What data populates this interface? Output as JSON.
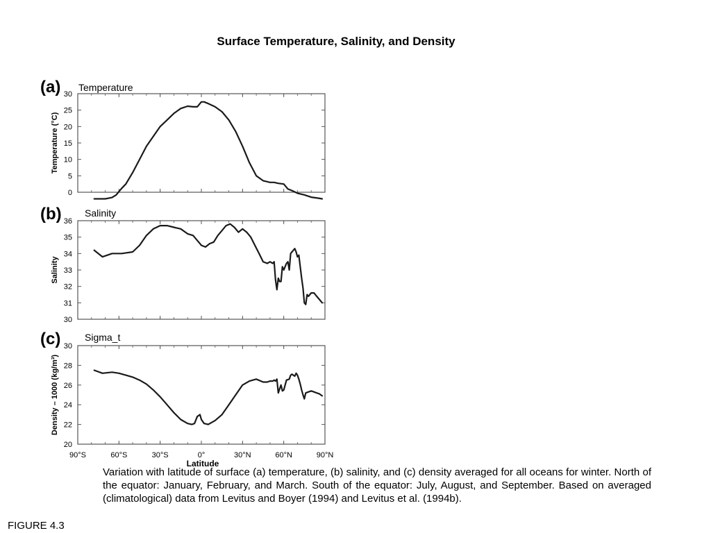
{
  "page": {
    "title": "Surface Temperature, Salinity, and Density",
    "caption": "Variation with latitude of surface (a) temperature, (b) salinity, and (c) density averaged for all oceans for winter. North of the equator: January, February, and March. South of the equator: July, August, and September. Based on averaged (climatological) data from Levitus and Boyer (1994) and Levitus et al. (1994b).",
    "figure_label": "FIGURE 4.3"
  },
  "colors": {
    "line": "#1a1a1a",
    "frame": "#555555",
    "text": "#000000"
  },
  "chart_data": [
    {
      "type": "line",
      "panel_letter": "(a)",
      "title": "Temperature",
      "xlabel": "",
      "ylabel": "Temperature (°C)",
      "xlim": [
        -90,
        90
      ],
      "ylim": [
        0,
        30
      ],
      "x_ticks": [
        -90,
        -60,
        -30,
        0,
        30,
        60,
        90
      ],
      "y_ticks": [
        0,
        5,
        10,
        15,
        20,
        25,
        30
      ],
      "y_tick_labels": [
        "0",
        "5",
        "10",
        "15",
        "20",
        "25",
        "30"
      ],
      "grid": false,
      "x": [
        -78,
        -70,
        -65,
        -62,
        -60,
        -58,
        -55,
        -50,
        -45,
        -40,
        -35,
        -30,
        -25,
        -20,
        -15,
        -10,
        -6,
        -3,
        -1,
        0,
        2,
        5,
        10,
        15,
        20,
        25,
        30,
        35,
        40,
        45,
        50,
        53,
        56,
        60,
        63,
        66,
        70,
        75,
        80,
        85,
        88
      ],
      "values": [
        -2,
        -2,
        -1.6,
        -0.8,
        0.2,
        1.2,
        2.5,
        6,
        10,
        14,
        17,
        20,
        22,
        24,
        25.5,
        26.2,
        26,
        26,
        27,
        27.5,
        27.5,
        27,
        26,
        24.5,
        22,
        18.5,
        14,
        9,
        5,
        3.5,
        3,
        3,
        2.7,
        2.5,
        1,
        0.5,
        -0.3,
        -0.8,
        -1.5,
        -1.8,
        -2
      ]
    },
    {
      "type": "line",
      "panel_letter": "(b)",
      "title": "Salinity",
      "xlabel": "",
      "ylabel": "Salinity",
      "xlim": [
        -90,
        90
      ],
      "ylim": [
        30,
        36
      ],
      "x_ticks": [
        -90,
        -60,
        -30,
        0,
        30,
        60,
        90
      ],
      "y_ticks": [
        30,
        31,
        32,
        33,
        34,
        35,
        36
      ],
      "y_tick_labels": [
        "30",
        "31",
        "32",
        "33",
        "34",
        "35",
        "36"
      ],
      "grid": false,
      "x": [
        -78,
        -72,
        -65,
        -58,
        -50,
        -45,
        -40,
        -35,
        -30,
        -25,
        -20,
        -15,
        -10,
        -6,
        -3,
        -1,
        0,
        3,
        6,
        9,
        12,
        15,
        18,
        21,
        24,
        27,
        30,
        33,
        36,
        39,
        42,
        45,
        48,
        50,
        52,
        53,
        54,
        55,
        56,
        57,
        58,
        59,
        60,
        61,
        62,
        63,
        64,
        65,
        66,
        67,
        68,
        69,
        70,
        71,
        72,
        73,
        74,
        75,
        76,
        77,
        78,
        80,
        82,
        84,
        86,
        88
      ],
      "values": [
        34.2,
        33.8,
        34,
        34,
        34.1,
        34.5,
        35.1,
        35.5,
        35.7,
        35.7,
        35.6,
        35.5,
        35.2,
        35.1,
        34.8,
        34.6,
        34.5,
        34.4,
        34.6,
        34.7,
        35.1,
        35.4,
        35.7,
        35.8,
        35.6,
        35.3,
        35.5,
        35.3,
        35,
        34.5,
        34,
        33.5,
        33.4,
        33.5,
        33.4,
        33.5,
        32.4,
        31.8,
        32.5,
        32.3,
        32.3,
        33.2,
        33,
        33.2,
        33.4,
        33.5,
        33,
        34,
        34.1,
        34.2,
        34.3,
        34.1,
        33.8,
        33.9,
        33.2,
        32.5,
        31.9,
        31,
        30.9,
        31.5,
        31.4,
        31.6,
        31.6,
        31.4,
        31.2,
        31
      ]
    },
    {
      "type": "line",
      "panel_letter": "(c)",
      "title": "Sigma_t",
      "xlabel": "Latitude",
      "ylabel": "Density – 1000 (kg/m³)",
      "xlim": [
        -90,
        90
      ],
      "ylim": [
        20,
        30
      ],
      "x_ticks": [
        -90,
        -60,
        -30,
        0,
        30,
        60,
        90
      ],
      "x_tick_labels": [
        "90°S",
        "60°S",
        "30°S",
        "0°",
        "30°N",
        "60°N",
        "90°N"
      ],
      "y_ticks": [
        20,
        22,
        24,
        26,
        28,
        30
      ],
      "y_tick_labels": [
        "20",
        "22",
        "24",
        "26",
        "28",
        "30"
      ],
      "grid": false,
      "x": [
        -78,
        -72,
        -65,
        -60,
        -55,
        -50,
        -45,
        -40,
        -35,
        -30,
        -25,
        -20,
        -15,
        -10,
        -7,
        -5,
        -3,
        -1,
        0,
        2,
        5,
        10,
        15,
        20,
        25,
        30,
        35,
        40,
        45,
        48,
        50,
        52,
        53,
        54,
        55,
        56,
        57,
        58,
        59,
        60,
        62,
        64,
        65,
        66,
        67,
        68,
        69,
        70,
        71,
        72,
        73,
        74,
        75,
        76,
        78,
        80,
        82,
        84,
        86,
        88
      ],
      "values": [
        27.5,
        27.2,
        27.3,
        27.2,
        27,
        26.8,
        26.5,
        26.1,
        25.5,
        24.8,
        24,
        23.2,
        22.5,
        22.1,
        22,
        22.1,
        22.8,
        23,
        22.5,
        22.1,
        22,
        22.4,
        23,
        24,
        25,
        26,
        26.4,
        26.6,
        26.3,
        26.3,
        26.4,
        26.4,
        26.5,
        26.4,
        26.6,
        25.2,
        25.6,
        26,
        25.4,
        25.5,
        26.5,
        26.6,
        27,
        27.1,
        27,
        26.9,
        27.2,
        27,
        26.6,
        26.1,
        25.5,
        25,
        24.6,
        25.2,
        25.3,
        25.4,
        25.3,
        25.2,
        25.1,
        24.9
      ]
    }
  ]
}
